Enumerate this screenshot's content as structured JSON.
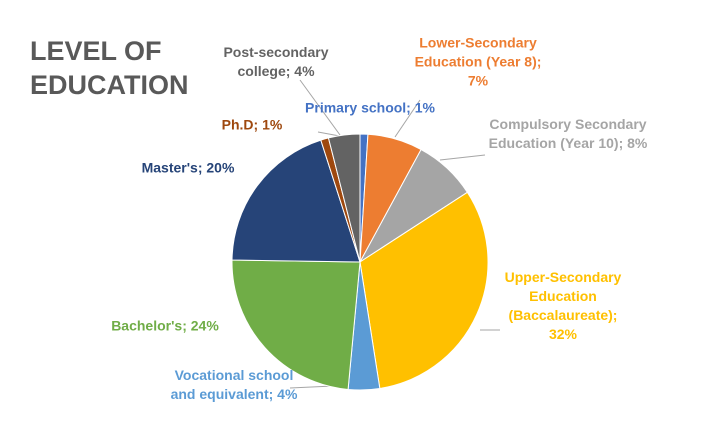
{
  "chart_data": {
    "type": "pie",
    "title": "LEVEL OF EDUCATION",
    "categories": [
      "Primary school",
      "Lower-Secondary Education (Year 8)",
      "Compulsory Secondary Education (Year 10)",
      "Upper-Secondary Education (Baccalaureate)",
      "Vocational school and equivalent",
      "Bachelor's",
      "Master's",
      "Ph.D",
      "Post-secondary college"
    ],
    "values": [
      1,
      7,
      8,
      32,
      4,
      24,
      20,
      1,
      4
    ],
    "value_labels": [
      "Primary school; 1%",
      "Lower-Secondary Education (Year 8); 7%",
      "Compulsory Secondary Education (Year 10); 8%",
      "Upper-Secondary Education (Baccalaureate); 32%",
      "Vocational school and equivalent; 4%",
      "Bachelor's; 24%",
      "Master's; 20%",
      "Ph.D; 1%",
      "Post-secondary college; 4%"
    ],
    "colors": [
      "#4472c4",
      "#ed7d31",
      "#a5a5a5",
      "#ffc000",
      "#5b9bd5",
      "#70ad47",
      "#264478",
      "#9e480e",
      "#636363"
    ]
  }
}
